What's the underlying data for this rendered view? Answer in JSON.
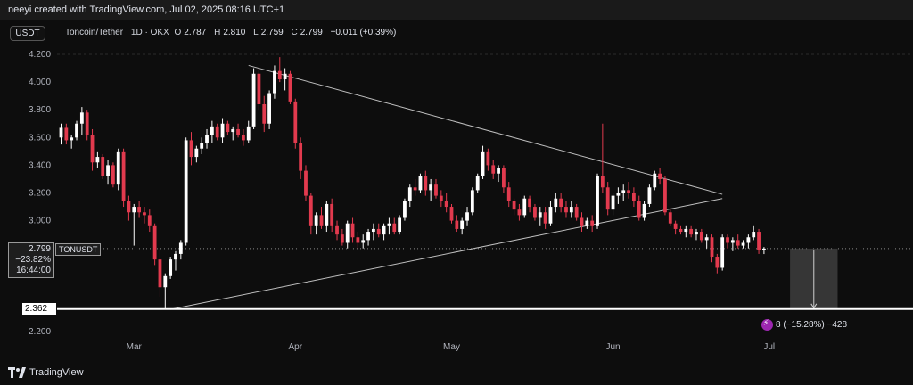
{
  "topbar": {
    "text": "neeyi created with TradingView.com, Jul 02, 2025 08:16 UTC+1"
  },
  "header": {
    "currency_button": "USDT",
    "title": "Toncoin/Tether · 1D · OKX",
    "o_label": "O",
    "o_value": "2.787",
    "h_label": "H",
    "h_value": "2.810",
    "l_label": "L",
    "l_value": "2.759",
    "c_label": "C",
    "c_value": "2.799",
    "change": "+0.011 (+0.39%)"
  },
  "price_tag": {
    "price": "2.799",
    "change_pct": "−23.82%",
    "countdown": "16:44:00",
    "symbol": "TONUSDT"
  },
  "level_tag": "2.362",
  "measure": {
    "text": "8 (−15.28%) −428"
  },
  "footer": {
    "brand": "TradingView",
    "logo_icon": "tradingview-logo-icon"
  },
  "colors": {
    "up": "#ffffff",
    "down": "#e23a4e",
    "background": "#0d0d0d",
    "trend": "#bfbfbf"
  },
  "chart_data": {
    "type": "candlestick",
    "symbol": "TONUSDT",
    "interval": "1D",
    "exchange": "OKX",
    "ylim": [
      2.12,
      4.24
    ],
    "yticks": [
      "4.200",
      "4.000",
      "3.800",
      "3.600",
      "3.400",
      "3.200",
      "3.000",
      "2.200"
    ],
    "x_labels": [
      {
        "label": "Mar",
        "index": 14
      },
      {
        "label": "Apr",
        "index": 45
      },
      {
        "label": "May",
        "index": 75
      },
      {
        "label": "Jun",
        "index": 106
      },
      {
        "label": "Jul",
        "index": 136
      }
    ],
    "candles": [
      [
        3.6,
        3.7,
        3.55,
        3.67
      ],
      [
        3.67,
        3.7,
        3.55,
        3.58
      ],
      [
        3.58,
        3.62,
        3.52,
        3.6
      ],
      [
        3.6,
        3.72,
        3.58,
        3.7
      ],
      [
        3.7,
        3.82,
        3.62,
        3.78
      ],
      [
        3.78,
        3.8,
        3.58,
        3.62
      ],
      [
        3.62,
        3.66,
        3.36,
        3.42
      ],
      [
        3.42,
        3.5,
        3.38,
        3.46
      ],
      [
        3.46,
        3.48,
        3.3,
        3.32
      ],
      [
        3.32,
        3.44,
        3.26,
        3.4
      ],
      [
        3.4,
        3.42,
        3.24,
        3.26
      ],
      [
        3.26,
        3.52,
        3.22,
        3.5
      ],
      [
        3.5,
        3.52,
        3.1,
        3.14
      ],
      [
        3.14,
        3.18,
        3.0,
        3.06
      ],
      [
        3.06,
        3.12,
        2.82,
        3.1
      ],
      [
        3.1,
        3.14,
        3.02,
        3.06
      ],
      [
        3.06,
        3.1,
        2.98,
        3.04
      ],
      [
        3.04,
        3.08,
        2.92,
        2.96
      ],
      [
        2.96,
        2.98,
        2.68,
        2.72
      ],
      [
        2.72,
        2.8,
        2.45,
        2.52
      ],
      [
        2.52,
        2.62,
        2.36,
        2.6
      ],
      [
        2.6,
        2.74,
        2.58,
        2.72
      ],
      [
        2.72,
        2.78,
        2.64,
        2.76
      ],
      [
        2.76,
        2.86,
        2.72,
        2.84
      ],
      [
        2.84,
        3.6,
        2.82,
        3.58
      ],
      [
        3.58,
        3.64,
        3.4,
        3.46
      ],
      [
        3.46,
        3.54,
        3.42,
        3.52
      ],
      [
        3.52,
        3.6,
        3.48,
        3.56
      ],
      [
        3.56,
        3.66,
        3.52,
        3.62
      ],
      [
        3.62,
        3.72,
        3.56,
        3.68
      ],
      [
        3.68,
        3.7,
        3.58,
        3.6
      ],
      [
        3.6,
        3.74,
        3.56,
        3.7
      ],
      [
        3.7,
        3.72,
        3.62,
        3.64
      ],
      [
        3.64,
        3.68,
        3.58,
        3.66
      ],
      [
        3.66,
        3.7,
        3.6,
        3.62
      ],
      [
        3.62,
        3.66,
        3.54,
        3.58
      ],
      [
        3.58,
        3.72,
        3.56,
        3.68
      ],
      [
        3.68,
        4.1,
        3.66,
        4.06
      ],
      [
        4.06,
        4.1,
        3.8,
        3.84
      ],
      [
        3.84,
        3.9,
        3.64,
        3.7
      ],
      [
        3.7,
        3.94,
        3.66,
        3.92
      ],
      [
        3.92,
        4.12,
        3.88,
        4.08
      ],
      [
        4.08,
        4.18,
        4.0,
        4.02
      ],
      [
        4.02,
        4.1,
        3.94,
        4.06
      ],
      [
        4.06,
        4.08,
        3.84,
        3.86
      ],
      [
        3.86,
        3.88,
        3.52,
        3.56
      ],
      [
        3.56,
        3.6,
        3.3,
        3.36
      ],
      [
        3.36,
        3.4,
        3.14,
        3.18
      ],
      [
        3.18,
        3.2,
        2.9,
        2.96
      ],
      [
        2.96,
        3.06,
        2.9,
        3.04
      ],
      [
        3.04,
        3.1,
        2.94,
        2.96
      ],
      [
        2.96,
        3.14,
        2.92,
        3.12
      ],
      [
        3.12,
        3.16,
        2.92,
        2.96
      ],
      [
        2.96,
        3.0,
        2.86,
        2.9
      ],
      [
        2.9,
        2.94,
        2.82,
        2.84
      ],
      [
        2.84,
        3.0,
        2.8,
        2.98
      ],
      [
        2.98,
        3.02,
        2.84,
        2.88
      ],
      [
        2.88,
        2.92,
        2.8,
        2.84
      ],
      [
        2.84,
        2.9,
        2.8,
        2.86
      ],
      [
        2.86,
        2.94,
        2.82,
        2.92
      ],
      [
        2.92,
        2.98,
        2.86,
        2.94
      ],
      [
        2.94,
        2.98,
        2.88,
        2.9
      ],
      [
        2.9,
        2.98,
        2.86,
        2.96
      ],
      [
        2.96,
        3.02,
        2.9,
        2.98
      ],
      [
        2.98,
        3.02,
        2.9,
        2.92
      ],
      [
        2.92,
        3.04,
        2.9,
        3.02
      ],
      [
        3.02,
        3.16,
        3.0,
        3.14
      ],
      [
        3.14,
        3.26,
        3.1,
        3.24
      ],
      [
        3.24,
        3.3,
        3.18,
        3.22
      ],
      [
        3.22,
        3.34,
        3.2,
        3.32
      ],
      [
        3.32,
        3.36,
        3.18,
        3.22
      ],
      [
        3.22,
        3.3,
        3.14,
        3.26
      ],
      [
        3.26,
        3.3,
        3.16,
        3.18
      ],
      [
        3.18,
        3.22,
        3.1,
        3.14
      ],
      [
        3.14,
        3.2,
        3.06,
        3.1
      ],
      [
        3.1,
        3.12,
        2.98,
        3.0
      ],
      [
        3.0,
        3.04,
        2.92,
        2.94
      ],
      [
        2.94,
        3.02,
        2.9,
        3.0
      ],
      [
        3.0,
        3.1,
        2.96,
        3.06
      ],
      [
        3.06,
        3.24,
        3.04,
        3.22
      ],
      [
        3.22,
        3.34,
        3.2,
        3.32
      ],
      [
        3.32,
        3.54,
        3.3,
        3.5
      ],
      [
        3.5,
        3.52,
        3.36,
        3.4
      ],
      [
        3.4,
        3.44,
        3.3,
        3.34
      ],
      [
        3.34,
        3.4,
        3.28,
        3.38
      ],
      [
        3.38,
        3.4,
        3.2,
        3.24
      ],
      [
        3.24,
        3.28,
        3.1,
        3.14
      ],
      [
        3.14,
        3.16,
        3.04,
        3.08
      ],
      [
        3.08,
        3.12,
        3.0,
        3.04
      ],
      [
        3.04,
        3.18,
        3.02,
        3.16
      ],
      [
        3.16,
        3.18,
        3.06,
        3.1
      ],
      [
        3.1,
        3.12,
        3.0,
        3.02
      ],
      [
        3.02,
        3.1,
        2.96,
        3.06
      ],
      [
        3.06,
        3.1,
        2.94,
        2.98
      ],
      [
        2.98,
        3.14,
        2.96,
        3.1
      ],
      [
        3.1,
        3.2,
        3.06,
        3.16
      ],
      [
        3.16,
        3.2,
        3.06,
        3.1
      ],
      [
        3.1,
        3.14,
        3.02,
        3.06
      ],
      [
        3.06,
        3.14,
        3.02,
        3.1
      ],
      [
        3.1,
        3.12,
        3.0,
        3.02
      ],
      [
        3.02,
        3.06,
        2.92,
        2.96
      ],
      [
        2.96,
        3.02,
        2.94,
        3.0
      ],
      [
        3.0,
        3.04,
        2.92,
        2.96
      ],
      [
        2.96,
        3.34,
        2.94,
        3.32
      ],
      [
        3.32,
        3.7,
        3.2,
        3.24
      ],
      [
        3.24,
        3.28,
        3.04,
        3.08
      ],
      [
        3.08,
        3.2,
        3.04,
        3.18
      ],
      [
        3.18,
        3.24,
        3.12,
        3.2
      ],
      [
        3.2,
        3.26,
        3.14,
        3.22
      ],
      [
        3.22,
        3.28,
        3.16,
        3.2
      ],
      [
        3.2,
        3.24,
        3.1,
        3.14
      ],
      [
        3.14,
        3.18,
        3.0,
        3.02
      ],
      [
        3.02,
        3.14,
        3.0,
        3.12
      ],
      [
        3.12,
        3.26,
        3.1,
        3.24
      ],
      [
        3.24,
        3.36,
        3.22,
        3.34
      ],
      [
        3.34,
        3.38,
        3.26,
        3.3
      ],
      [
        3.3,
        3.32,
        3.04,
        3.06
      ],
      [
        3.06,
        3.08,
        2.96,
        2.98
      ],
      [
        2.98,
        3.0,
        2.9,
        2.94
      ],
      [
        2.94,
        2.96,
        2.9,
        2.92
      ],
      [
        2.92,
        2.96,
        2.88,
        2.94
      ],
      [
        2.94,
        2.96,
        2.88,
        2.9
      ],
      [
        2.9,
        2.94,
        2.86,
        2.92
      ],
      [
        2.92,
        2.94,
        2.84,
        2.86
      ],
      [
        2.86,
        2.9,
        2.8,
        2.88
      ],
      [
        2.88,
        2.9,
        2.7,
        2.74
      ],
      [
        2.74,
        2.76,
        2.62,
        2.66
      ],
      [
        2.66,
        2.9,
        2.64,
        2.88
      ],
      [
        2.88,
        2.9,
        2.8,
        2.84
      ],
      [
        2.84,
        2.88,
        2.78,
        2.86
      ],
      [
        2.86,
        2.9,
        2.8,
        2.82
      ],
      [
        2.82,
        2.86,
        2.8,
        2.84
      ],
      [
        2.84,
        2.9,
        2.8,
        2.88
      ],
      [
        2.88,
        2.96,
        2.86,
        2.92
      ],
      [
        2.92,
        2.94,
        2.76,
        2.79
      ],
      [
        2.787,
        2.81,
        2.759,
        2.799
      ]
    ],
    "annotations": {
      "horizontal_level": 2.362,
      "current_price": 2.799,
      "upper_trendline": [
        [
          36,
          4.12
        ],
        [
          127,
          3.19
        ]
      ],
      "lower_trendline": [
        [
          21,
          2.36
        ],
        [
          127,
          3.16
        ]
      ],
      "projection_box": {
        "from_index": 140,
        "to_index": 144,
        "top": 2.799,
        "bottom": 2.362
      }
    }
  }
}
